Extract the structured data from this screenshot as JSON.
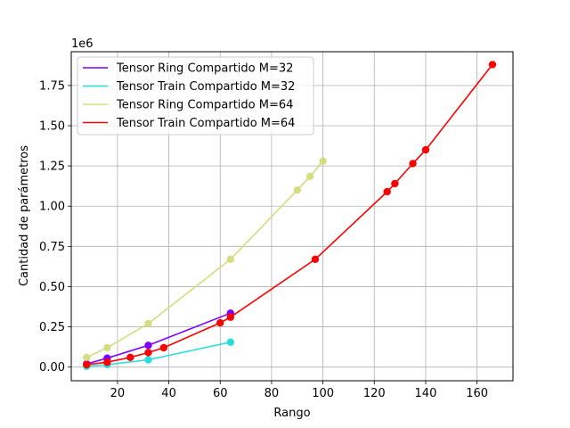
{
  "chart_data": {
    "type": "line",
    "xlabel": "Rango",
    "ylabel": "Cantidad de parámetros",
    "y_scale_label": "1e6",
    "xlim": [
      2,
      174
    ],
    "ylim": [
      -0.085,
      1.96
    ],
    "x_ticks": [
      {
        "value": 20,
        "label": "20"
      },
      {
        "value": 40,
        "label": "40"
      },
      {
        "value": 60,
        "label": "60"
      },
      {
        "value": 80,
        "label": "80"
      },
      {
        "value": 100,
        "label": "100"
      },
      {
        "value": 120,
        "label": "120"
      },
      {
        "value": 140,
        "label": "140"
      },
      {
        "value": 160,
        "label": "160"
      }
    ],
    "y_ticks": [
      {
        "value": 0.0,
        "label": "0.00"
      },
      {
        "value": 0.25,
        "label": "0.25"
      },
      {
        "value": 0.5,
        "label": "0.50"
      },
      {
        "value": 0.75,
        "label": "0.75"
      },
      {
        "value": 1.0,
        "label": "1.00"
      },
      {
        "value": 1.25,
        "label": "1.25"
      },
      {
        "value": 1.5,
        "label": "1.50"
      },
      {
        "value": 1.75,
        "label": "1.75"
      }
    ],
    "grid": true,
    "legend_position": "top-left",
    "series": [
      {
        "name": "Tensor Ring Compartido M=32",
        "color": "#8000ff",
        "x": [
          8,
          16,
          32,
          64
        ],
        "y": [
          0.02,
          0.055,
          0.135,
          0.335
        ]
      },
      {
        "name": "Tensor Train Compartido M=32",
        "color": "#2adddd",
        "x": [
          8,
          16,
          32,
          64
        ],
        "y": [
          0.005,
          0.015,
          0.045,
          0.155
        ]
      },
      {
        "name": "Tensor Ring Compartido M=64",
        "color": "#d4dd80",
        "x": [
          8,
          16,
          32,
          64,
          90,
          95,
          100
        ],
        "y": [
          0.06,
          0.12,
          0.27,
          0.67,
          1.1,
          1.185,
          1.28
        ]
      },
      {
        "name": "Tensor Train Compartido M=64",
        "color": "#ff0000",
        "x": [
          8,
          16,
          25,
          32,
          38,
          60,
          64,
          97,
          125,
          128,
          135,
          140,
          166
        ],
        "y": [
          0.015,
          0.03,
          0.06,
          0.09,
          0.12,
          0.275,
          0.31,
          0.67,
          1.09,
          1.14,
          1.265,
          1.35,
          1.88
        ]
      }
    ]
  }
}
